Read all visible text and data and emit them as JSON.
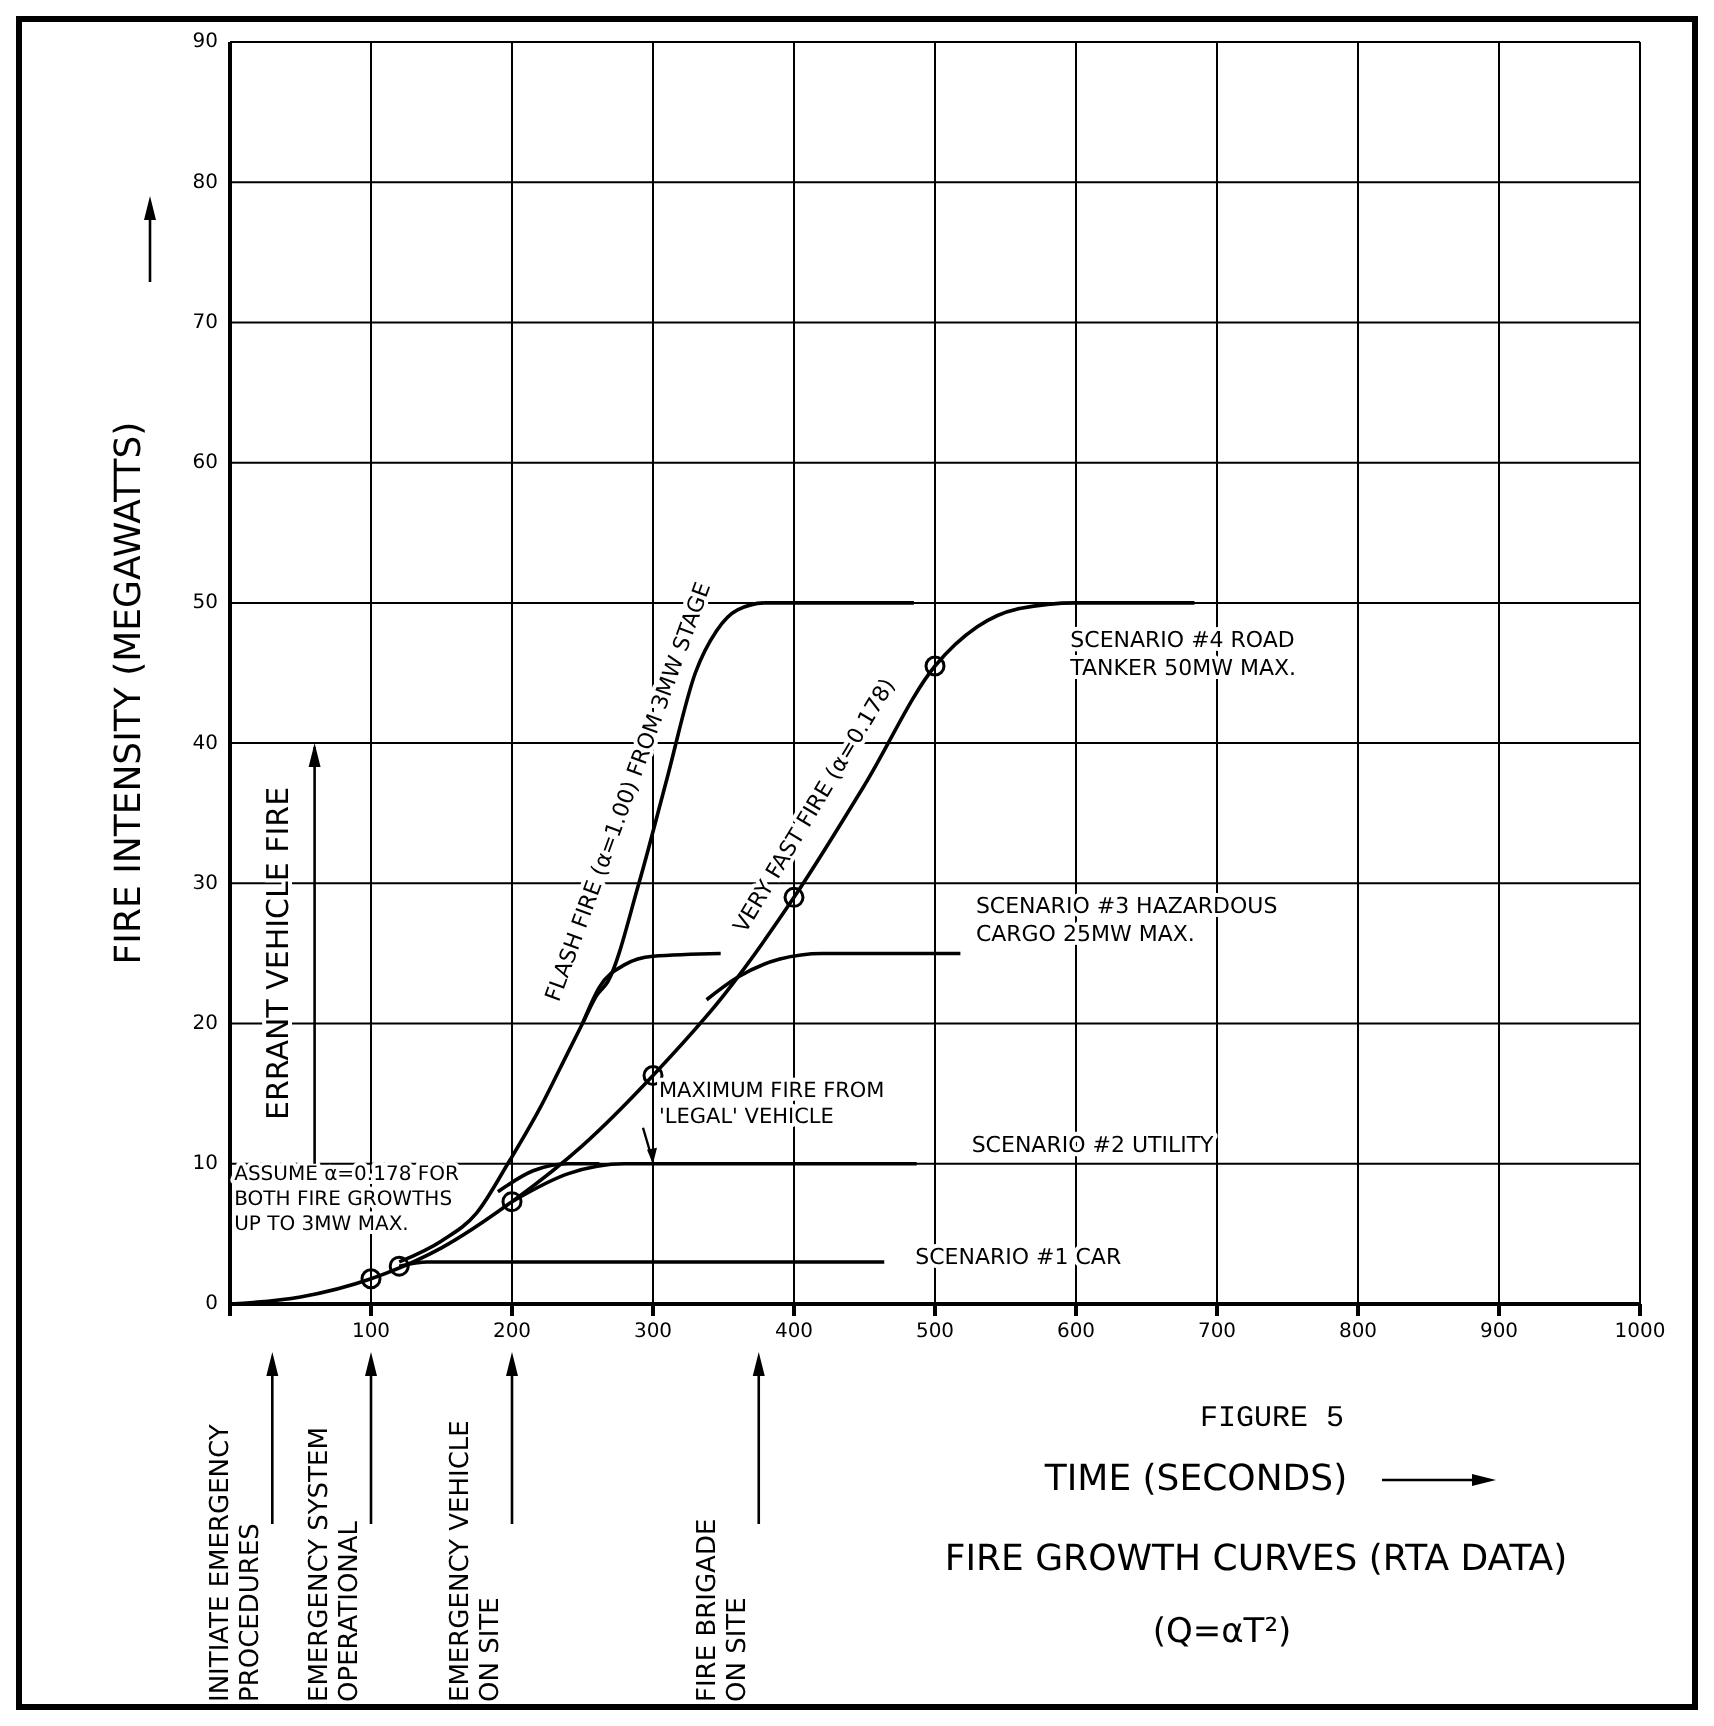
{
  "chart_data": {
    "type": "line",
    "title": "FIRE GROWTH CURVES (RTA DATA)",
    "subtitle": "(Q=αT²)",
    "xlabel": "TIME (SECONDS)",
    "ylabel": "FIRE INTENSITY (MEGAWATTS)",
    "xlim": [
      0,
      1000
    ],
    "xticks": [
      {
        "value": 0,
        "label": null
      },
      100,
      200,
      300,
      400,
      500,
      600,
      700,
      800,
      900,
      1000
    ],
    "ylim": [
      0,
      90
    ],
    "yticks": [
      0,
      10,
      20,
      30,
      40,
      50,
      60,
      70,
      80,
      90
    ],
    "grid": true,
    "marker": "none",
    "line_style": "solid",
    "series": [
      {
        "color": "#000000",
        "x": [
          0,
          50,
          100,
          150,
          200,
          250,
          300,
          350,
          400,
          450,
          500,
          530,
          560,
          600,
          684
        ],
        "values": [
          0,
          0.5,
          1.8,
          4,
          7.3,
          11.3,
          16.3,
          22,
          29,
          37,
          45.5,
          48.3,
          49.6,
          50,
          50
        ]
      },
      {
        "color": "#000000",
        "x": [
          120,
          150,
          175,
          197,
          220,
          240,
          250,
          260,
          268,
          290,
          310,
          330,
          345,
          360,
          380,
          485
        ],
        "values": [
          3,
          4.5,
          6.5,
          10,
          14,
          18,
          20,
          22,
          23,
          30,
          37.5,
          45,
          48,
          49.5,
          50,
          50
        ]
      },
      {
        "color": "#000000",
        "x": [
          250,
          262,
          280,
          300,
          348
        ],
        "values": [
          20,
          22.6,
          24.2,
          24.8,
          25
        ]
      },
      {
        "color": "#000000",
        "x": [
          338,
          360,
          390,
          420,
          518
        ],
        "values": [
          21.7,
          23.3,
          24.6,
          25,
          25
        ]
      },
      {
        "color": "#000000",
        "x": [
          190,
          215,
          240,
          262
        ],
        "values": [
          8,
          9.5,
          10,
          10
        ]
      },
      {
        "color": "#000000",
        "x": [
          200,
          240,
          280,
          487
        ],
        "values": [
          7.3,
          9.3,
          10,
          10
        ]
      },
      {
        "color": "#000000",
        "x": [
          120,
          140,
          464
        ],
        "values": [
          2.7,
          3,
          3
        ]
      },
      {
        "type": "scatter",
        "marker": "circle",
        "color": "#000000",
        "x": [
          100,
          120,
          200,
          300,
          400,
          500
        ],
        "values": [
          1.8,
          2.7,
          7.3,
          16.3,
          29,
          45.5
        ]
      }
    ],
    "annotations": [
      "SCENARIO #1 CAR",
      "SCENARIO #2 UTILITY",
      "SCENARIO #3 HAZARDOUS\nCARGO 25MW MAX.",
      "SCENARIO #4 ROAD\nTANKER 50MW MAX.",
      "FLASH FIRE (α=1.00) FROM 3MW STAGE",
      "VERY FAST FIRE (α=0.178)",
      {
        "text": "MAXIMUM FIRE FROM\n'LEGAL' VEHICLE",
        "x": 300,
        "y": 10
      },
      "INITIATE EMERGENCY\nPROCEDURES",
      "EMERGENCY SYSTEM\nOPERATIONAL",
      "EMERGENCY VEHICLE\nON SITE",
      "FIRE BRIGADE\nON SITE",
      "ASSUME α=0.178 FOR\nBOTH FIRE GROWTHS\nUP TO 3MW MAX.",
      "ERRANT VEHICLE FIRE",
      "FIGURE 5"
    ]
  }
}
